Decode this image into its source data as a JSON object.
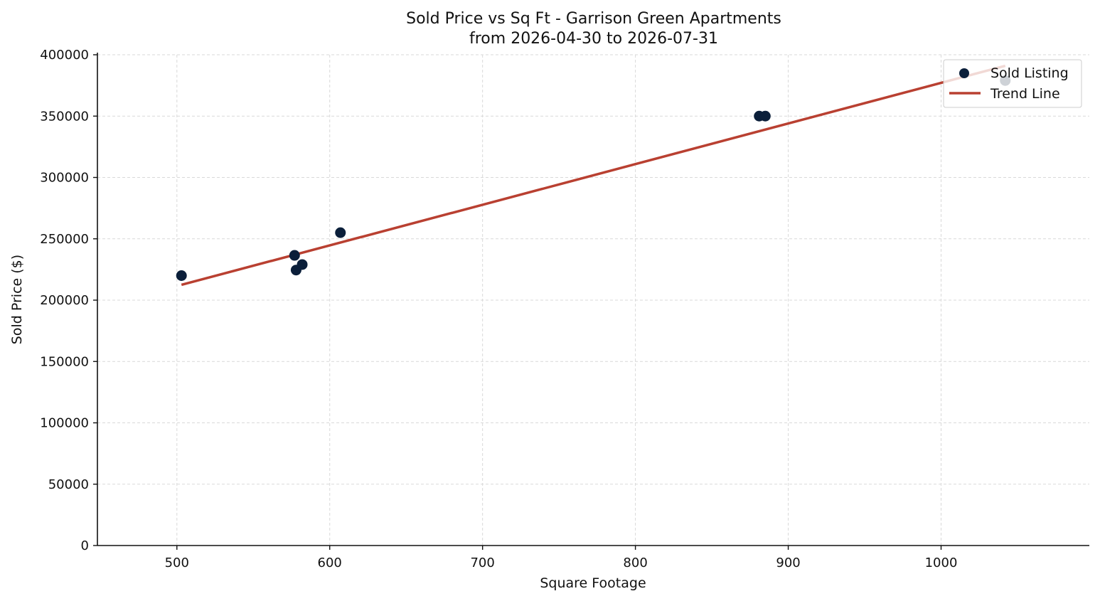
{
  "chart_data": {
    "type": "scatter",
    "title": "Sold Price vs Sq Ft - Garrison Green Apartments",
    "subtitle": "from 2026-04-30 to 2026-07-31",
    "xlabel": "Square Footage",
    "ylabel": "Sold Price ($)",
    "xlim": [
      448,
      1097
    ],
    "ylim": [
      0,
      400000
    ],
    "xticks": [
      500,
      600,
      700,
      800,
      900,
      1000
    ],
    "yticks": [
      0,
      50000,
      100000,
      150000,
      200000,
      250000,
      300000,
      350000,
      400000
    ],
    "grid": true,
    "legend_position": "top-right",
    "series": [
      {
        "name": "Sold Listing",
        "kind": "scatter",
        "color": "#0b1f3a",
        "points": [
          {
            "x": 503,
            "y": 220000
          },
          {
            "x": 577,
            "y": 236500
          },
          {
            "x": 578,
            "y": 224500
          },
          {
            "x": 582,
            "y": 229000
          },
          {
            "x": 607,
            "y": 255000
          },
          {
            "x": 881,
            "y": 350000
          },
          {
            "x": 885,
            "y": 350000
          },
          {
            "x": 1042,
            "y": 379000
          }
        ]
      },
      {
        "name": "Trend Line",
        "kind": "line",
        "color": "#b94031",
        "points": [
          {
            "x": 503,
            "y": 212500
          },
          {
            "x": 1042,
            "y": 391000
          }
        ]
      }
    ]
  }
}
